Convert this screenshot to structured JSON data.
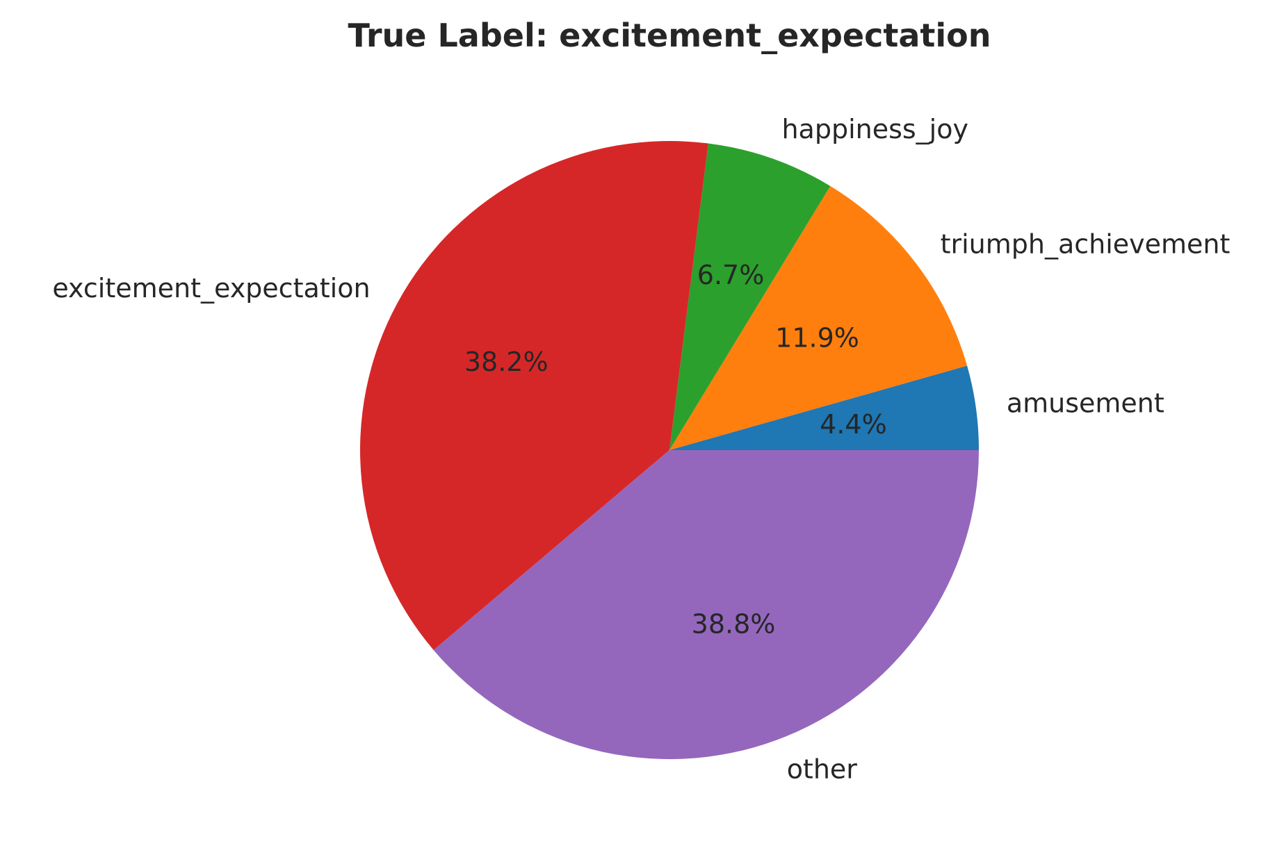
{
  "chart_data": {
    "type": "pie",
    "title": "True Label: excitement_expectation",
    "start_angle_deg": 0,
    "direction": "counterclockwise",
    "slices": [
      {
        "label": "amusement",
        "value": 4.4,
        "pct_label": "4.4%",
        "color": "#1f77b4"
      },
      {
        "label": "triumph_achievement",
        "value": 11.9,
        "pct_label": "11.9%",
        "color": "#ff7f0e"
      },
      {
        "label": "happiness_joy",
        "value": 6.7,
        "pct_label": "6.7%",
        "color": "#2ca02c"
      },
      {
        "label": "excitement_expectation",
        "value": 38.2,
        "pct_label": "38.2%",
        "color": "#d62728"
      },
      {
        "label": "other",
        "value": 38.8,
        "pct_label": "38.8%",
        "color": "#9467bd"
      }
    ]
  }
}
